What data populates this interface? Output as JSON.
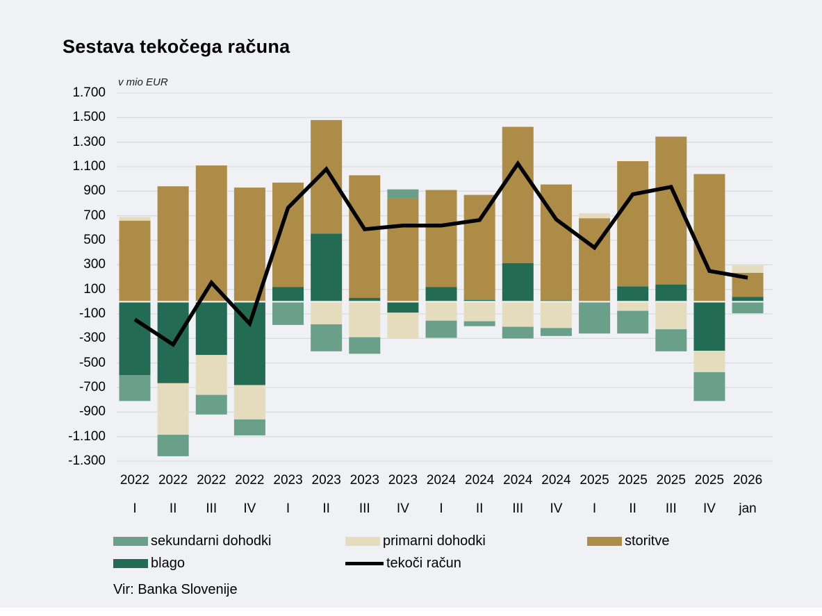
{
  "page": {
    "background": "#EFF1F5",
    "footer_strip_color": "#FFFFFF"
  },
  "header": {
    "title": "Sestava tekočega računa"
  },
  "source": {
    "text": "Vir: Banka Slovenije"
  },
  "chart_data": {
    "type": "bar",
    "stacked": true,
    "line_overlay": true,
    "title": "Sestava tekočega računa",
    "unit_label": "v mio EUR",
    "ylim": [
      -1300,
      1700
    ],
    "ytick_step": 200,
    "ytick_labels": [
      "1.700",
      "1.500",
      "1.300",
      "1.100",
      "900",
      "700",
      "500",
      "300",
      "100",
      "-100",
      "-300",
      "-500",
      "-700",
      "-900",
      "-1.100",
      "-1.300"
    ],
    "grid_on": true,
    "grid_color": "#D9DCE1",
    "categories": [
      "2022 I",
      "2022 II",
      "2022 III",
      "2022 IV",
      "2023 I",
      "2023 II",
      "2023 III",
      "2023 IV",
      "2024 I",
      "2024 II",
      "2024 III",
      "2024 IV",
      "2025 I",
      "2025 II",
      "2025 III",
      "2025 IV",
      "2026 jan"
    ],
    "categories_year": [
      "2022",
      "2022",
      "2022",
      "2022",
      "2023",
      "2023",
      "2023",
      "2023",
      "2024",
      "2024",
      "2024",
      "2024",
      "2025",
      "2025",
      "2025",
      "2025",
      "2026"
    ],
    "categories_period": [
      "I",
      "II",
      "III",
      "IV",
      "I",
      "II",
      "III",
      "IV",
      "I",
      "II",
      "III",
      "IV",
      "I",
      "II",
      "III",
      "IV",
      "jan"
    ],
    "series": [
      {
        "name": "blago",
        "color": "#236C53",
        "values": [
          -600,
          -665,
          -435,
          -680,
          120,
          555,
          30,
          -90,
          120,
          15,
          315,
          10,
          0,
          125,
          140,
          -400,
          40
        ]
      },
      {
        "name": "storitve",
        "color": "#AD8C48",
        "values": [
          660,
          940,
          1110,
          930,
          850,
          925,
          1000,
          845,
          790,
          855,
          1110,
          945,
          680,
          1020,
          1205,
          1040,
          195
        ]
      },
      {
        "name": "primarni dohodki",
        "color": "#E5DCBE",
        "values": [
          30,
          -420,
          -325,
          -280,
          0,
          -185,
          -290,
          -210,
          -155,
          -160,
          -205,
          -215,
          40,
          -75,
          -225,
          -175,
          60
        ]
      },
      {
        "name": "sekundarni dohodki",
        "color": "#6AA089",
        "values": [
          -210,
          -175,
          -160,
          -130,
          -190,
          -220,
          -135,
          70,
          -140,
          -40,
          -95,
          -65,
          -260,
          -185,
          -180,
          -235,
          -95
        ]
      }
    ],
    "line_series": {
      "name": "tekoči račun",
      "color": "#000000",
      "values": [
        -145,
        -350,
        155,
        -180,
        765,
        1080,
        590,
        620,
        620,
        665,
        1125,
        670,
        440,
        875,
        935,
        250,
        195
      ]
    },
    "legend_position": "bottom"
  },
  "legend": {
    "items": [
      {
        "label": "sekundarni dohodki",
        "color": "#6AA089",
        "type": "box"
      },
      {
        "label": "primarni dohodki",
        "color": "#E5DCBE",
        "type": "box"
      },
      {
        "label": "storitve",
        "color": "#AD8C48",
        "type": "box"
      },
      {
        "label": "blago",
        "color": "#236C53",
        "type": "box"
      },
      {
        "label": "tekoči račun",
        "color": "#000000",
        "type": "line"
      }
    ]
  }
}
